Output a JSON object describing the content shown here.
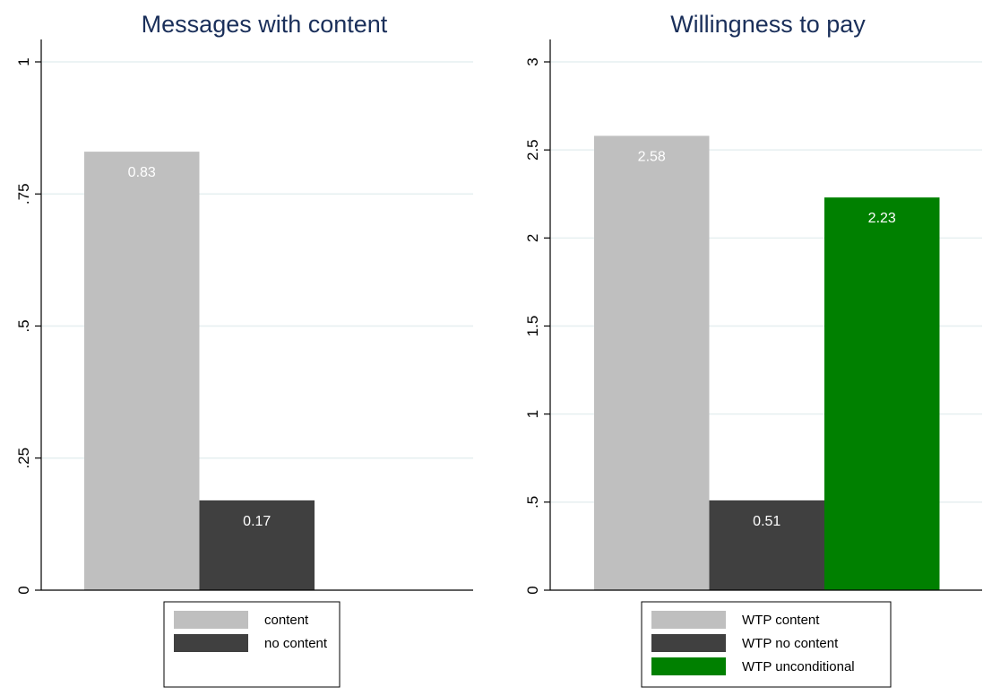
{
  "chart_data": [
    {
      "type": "bar",
      "title": "Messages with content",
      "ylim": [
        0,
        1
      ],
      "yticks": [
        {
          "value": 0,
          "label": "0"
        },
        {
          "value": 0.25,
          "label": ".25"
        },
        {
          "value": 0.5,
          "label": ".5"
        },
        {
          "value": 0.75,
          "label": ".75"
        },
        {
          "value": 1,
          "label": "1"
        }
      ],
      "grid": true,
      "legend_position": "bottom",
      "series": [
        {
          "name": "content",
          "value": 0.83,
          "value_label": "0.83",
          "color": "#bfbfbf"
        },
        {
          "name": "no content",
          "value": 0.17,
          "value_label": "0.17",
          "color": "#404040"
        }
      ]
    },
    {
      "type": "bar",
      "title": "Willingness to pay",
      "ylim": [
        0,
        3
      ],
      "yticks": [
        {
          "value": 0,
          "label": "0"
        },
        {
          "value": 0.5,
          "label": ".5"
        },
        {
          "value": 1,
          "label": "1"
        },
        {
          "value": 1.5,
          "label": "1.5"
        },
        {
          "value": 2,
          "label": "2"
        },
        {
          "value": 2.5,
          "label": "2.5"
        },
        {
          "value": 3,
          "label": "3"
        }
      ],
      "grid": true,
      "legend_position": "bottom",
      "series": [
        {
          "name": "WTP content",
          "value": 2.58,
          "value_label": "2.58",
          "color": "#bfbfbf"
        },
        {
          "name": "WTP no content",
          "value": 0.51,
          "value_label": "0.51",
          "color": "#404040"
        },
        {
          "name": "WTP unconditional",
          "value": 2.23,
          "value_label": "2.23",
          "color": "#008000"
        }
      ]
    }
  ],
  "colors": {
    "title": "#1a2f5a",
    "grid": "#e6eff0",
    "axis": "#000000",
    "bar_label": "#ffffff"
  }
}
